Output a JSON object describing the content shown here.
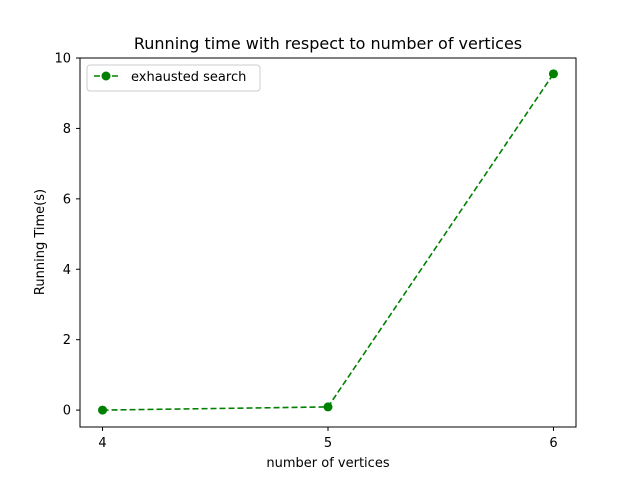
{
  "chart_data": {
    "type": "line",
    "title": "Running time with respect to number of vertices",
    "xlabel": "number of vertices",
    "ylabel": "Running Time(s)",
    "x": [
      4,
      5,
      6
    ],
    "series": [
      {
        "name": "exhausted search",
        "values": [
          0.0,
          0.09,
          9.55
        ],
        "color": "#008000",
        "line_style": "dashed",
        "marker": "circle"
      }
    ],
    "x_ticks": [
      "4",
      "5",
      "6"
    ],
    "y_ticks": [
      "0",
      "2",
      "4",
      "6",
      "8",
      "10"
    ],
    "xlim": [
      3.9,
      6.1
    ],
    "ylim": [
      -0.48,
      10.0
    ],
    "grid": false,
    "legend_position": "upper-left"
  }
}
